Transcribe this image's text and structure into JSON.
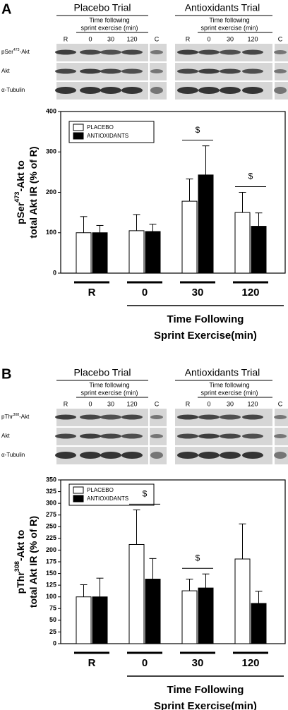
{
  "panels": [
    {
      "label": "A",
      "trials": [
        {
          "name": "Placebo Trial",
          "time_label": [
            "Time following",
            "sprint exercise (min)"
          ],
          "lanes": [
            "R",
            "0",
            "30",
            "120"
          ]
        },
        {
          "name": "Antioxidants Trial",
          "time_label": [
            "Time following",
            "sprint exercise (min)"
          ],
          "lanes": [
            "R",
            "0",
            "30",
            "120"
          ]
        }
      ],
      "control_lane": "C",
      "rows": [
        [
          "pSer",
          "473",
          "-Akt"
        ],
        [
          "Akt"
        ],
        [
          "α-Tubulin"
        ]
      ]
    },
    {
      "label": "B",
      "trials": [
        {
          "name": "Placebo Trial",
          "time_label": [
            "Time following",
            "sprint exercise (min)"
          ],
          "lanes": [
            "R",
            "0",
            "30",
            "120"
          ]
        },
        {
          "name": "Antioxidants Trial",
          "time_label": [
            "Time following",
            "sprint exercise (min)"
          ],
          "lanes": [
            "R",
            "0",
            "30",
            "120"
          ]
        }
      ],
      "control_lane": "C",
      "rows": [
        [
          "pThr",
          "308",
          "-Akt"
        ],
        [
          "Akt"
        ],
        [
          "α-Tubulin"
        ]
      ]
    }
  ],
  "chart_data": [
    {
      "type": "bar",
      "y_label": [
        [
          "pSer",
          "473",
          "-Akt to"
        ],
        [
          "total Akt IR (% of R)"
        ]
      ],
      "categories": [
        "R",
        "0",
        "30",
        "120"
      ],
      "series": [
        {
          "name": "PLACEBO",
          "color": "#ffffff",
          "values": [
            100,
            105,
            178,
            150
          ],
          "errors": [
            40,
            40,
            55,
            50
          ]
        },
        {
          "name": "ANTIOXIDANTS",
          "color": "#000000",
          "values": [
            100,
            103,
            243,
            116
          ],
          "errors": [
            18,
            18,
            72,
            33
          ]
        }
      ],
      "ylim": [
        0,
        400
      ],
      "yticks": [
        0,
        100,
        200,
        300,
        400
      ],
      "legend": "upper left",
      "x_label": [
        "Time Following",
        "Sprint Exercise(min)"
      ],
      "annotations": [
        {
          "text": "$",
          "category": "30"
        },
        {
          "text": "$",
          "category": "120"
        }
      ]
    },
    {
      "type": "bar",
      "y_label": [
        [
          "pThr",
          "308",
          "-Akt to"
        ],
        [
          "total Akt IR (% of R)"
        ]
      ],
      "categories": [
        "R",
        "0",
        "30",
        "120"
      ],
      "series": [
        {
          "name": "PLACEBO",
          "color": "#ffffff",
          "values": [
            100,
            212,
            113,
            181
          ],
          "errors": [
            26,
            74,
            25,
            75
          ]
        },
        {
          "name": "ANTIOXIDANTS",
          "color": "#000000",
          "values": [
            100,
            138,
            119,
            86
          ],
          "errors": [
            40,
            44,
            30,
            26
          ]
        }
      ],
      "ylim": [
        0,
        350
      ],
      "yticks": [
        0,
        25,
        50,
        75,
        100,
        125,
        150,
        175,
        200,
        225,
        250,
        275,
        300,
        325,
        350
      ],
      "legend": "upper left",
      "x_label": [
        "Time Following",
        "Sprint Exercise(min)"
      ],
      "annotations": [
        {
          "text": "$",
          "category": "0"
        },
        {
          "text": "$",
          "category": "30"
        }
      ]
    }
  ]
}
